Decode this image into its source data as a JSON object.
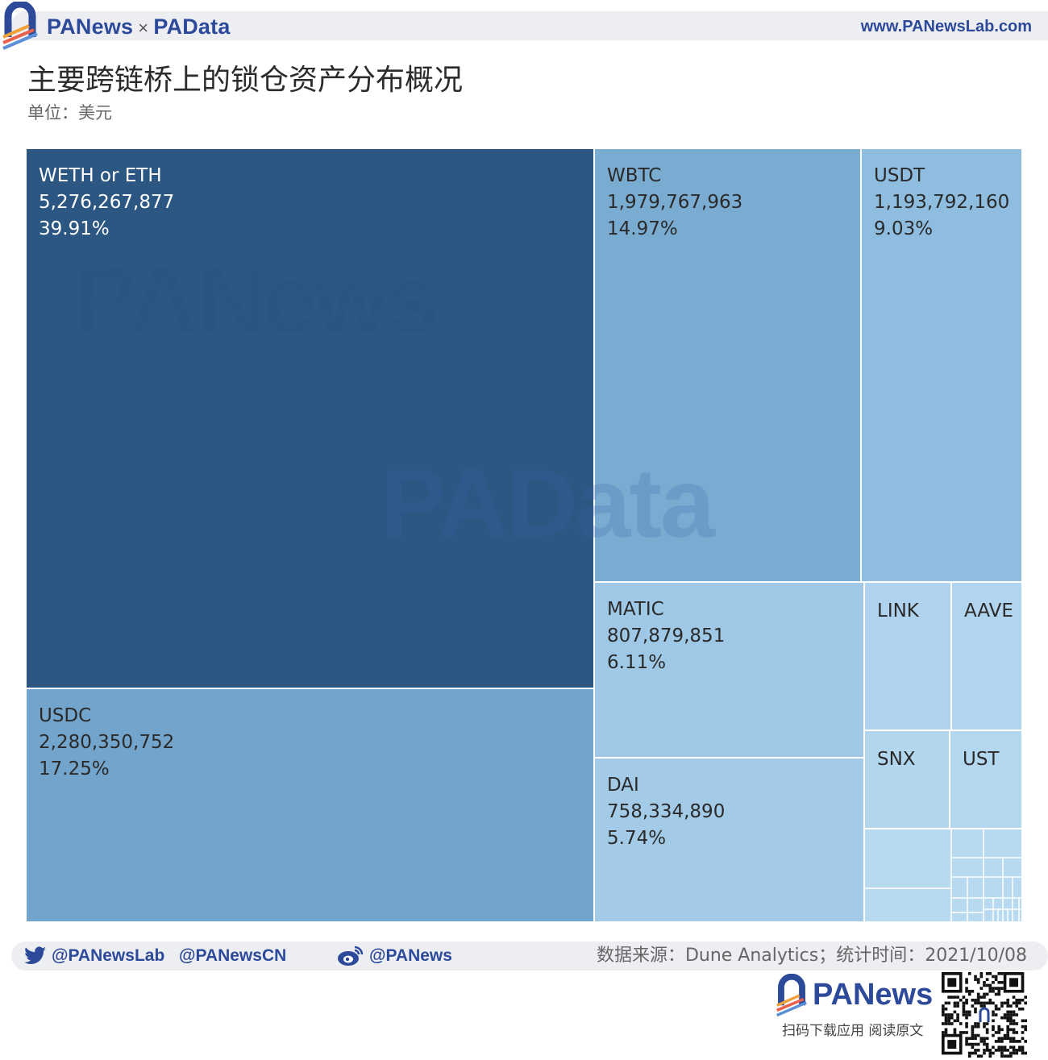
{
  "header": {
    "brand_pan": "PANews",
    "brand_times": "×",
    "brand_pad": "PAData",
    "site_url": "www.PANewsLab.com",
    "title": "主要跨链桥上的锁仓资产分布概况",
    "unit": "单位：美元"
  },
  "chart_data": {
    "type": "treemap",
    "title": "主要跨链桥上的锁仓资产分布概况",
    "unit": "单位：美元",
    "items": [
      {
        "name": "WETH or ETH",
        "value": 5276267877,
        "value_label": "5,276,267,877",
        "share": "39.91%",
        "color": "#2b5782"
      },
      {
        "name": "USDC",
        "value": 2280350752,
        "value_label": "2,280,350,752",
        "share": "17.25%",
        "color": "#73a4cb"
      },
      {
        "name": "WBTC",
        "value": 1979767963,
        "value_label": "1,979,767,963",
        "share": "14.97%",
        "color": "#7aabd1"
      },
      {
        "name": "USDT",
        "value": 1193792160,
        "value_label": "1,193,792,160",
        "share": "9.03%",
        "color": "#8fbde0"
      },
      {
        "name": "MATIC",
        "value": 807879851,
        "value_label": "807,879,851",
        "share": "6.11%",
        "color": "#9fc8e6"
      },
      {
        "name": "DAI",
        "value": 758334890,
        "value_label": "758,334,890",
        "share": "5.74%",
        "color": "#a3cbe8"
      },
      {
        "name": "LINK",
        "color": "#afd3ee"
      },
      {
        "name": "AAVE",
        "color": "#b1d5ef"
      },
      {
        "name": "SNX",
        "color": "#b3d6ef"
      },
      {
        "name": "UST",
        "color": "#b4d7f0"
      }
    ],
    "other_color": "#b8daf1"
  },
  "footer": {
    "twitter1": "@PANewsLab",
    "twitter2": "@PANewsCN",
    "weibo": "@PANews",
    "source": "数据来源：Dune Analytics；统计时间：2021/10/08",
    "brand": "PANews",
    "app_text": "扫码下载应用  阅读原文"
  },
  "colors": {
    "brand_blue": "#2d4a9a",
    "accent_orange": "#f2a23a"
  }
}
